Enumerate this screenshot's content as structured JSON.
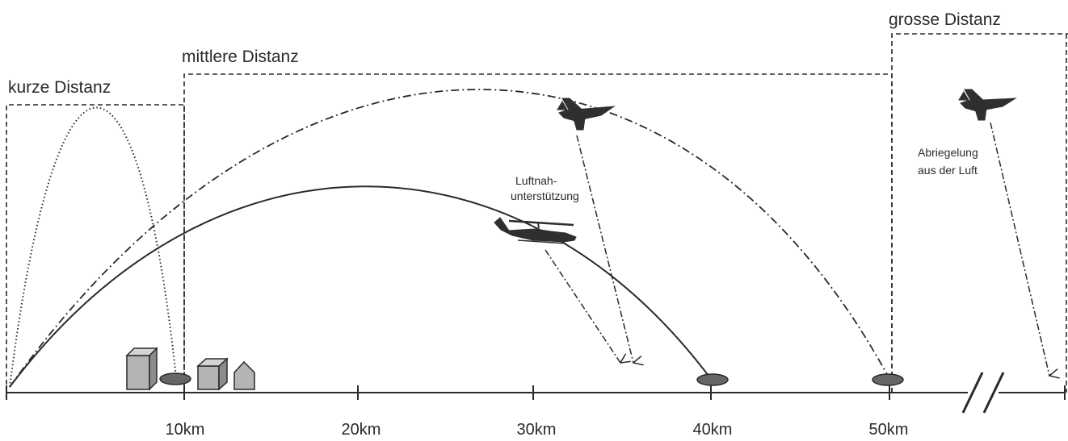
{
  "zones": [
    {
      "id": "short",
      "label": "kurze Distanz"
    },
    {
      "id": "medium",
      "label": "mittlere Distanz"
    },
    {
      "id": "long",
      "label": "grosse Distanz"
    }
  ],
  "axis": {
    "ticks": [
      "10km",
      "20km",
      "30km",
      "40km",
      "50km"
    ]
  },
  "annotations": {
    "cas_line1": "Luftnah-",
    "cas_line2": "unterstützung",
    "interdiction_line1": "Abriegelung",
    "interdiction_line2": "aus der Luft"
  },
  "icons": [
    "jet-icon",
    "jet-icon",
    "helicopter-icon",
    "building-icon",
    "house-icon"
  ],
  "colors": {
    "line": "#2a2a2a",
    "building_fill": "#b4b4b4",
    "target_fill": "#666666"
  }
}
